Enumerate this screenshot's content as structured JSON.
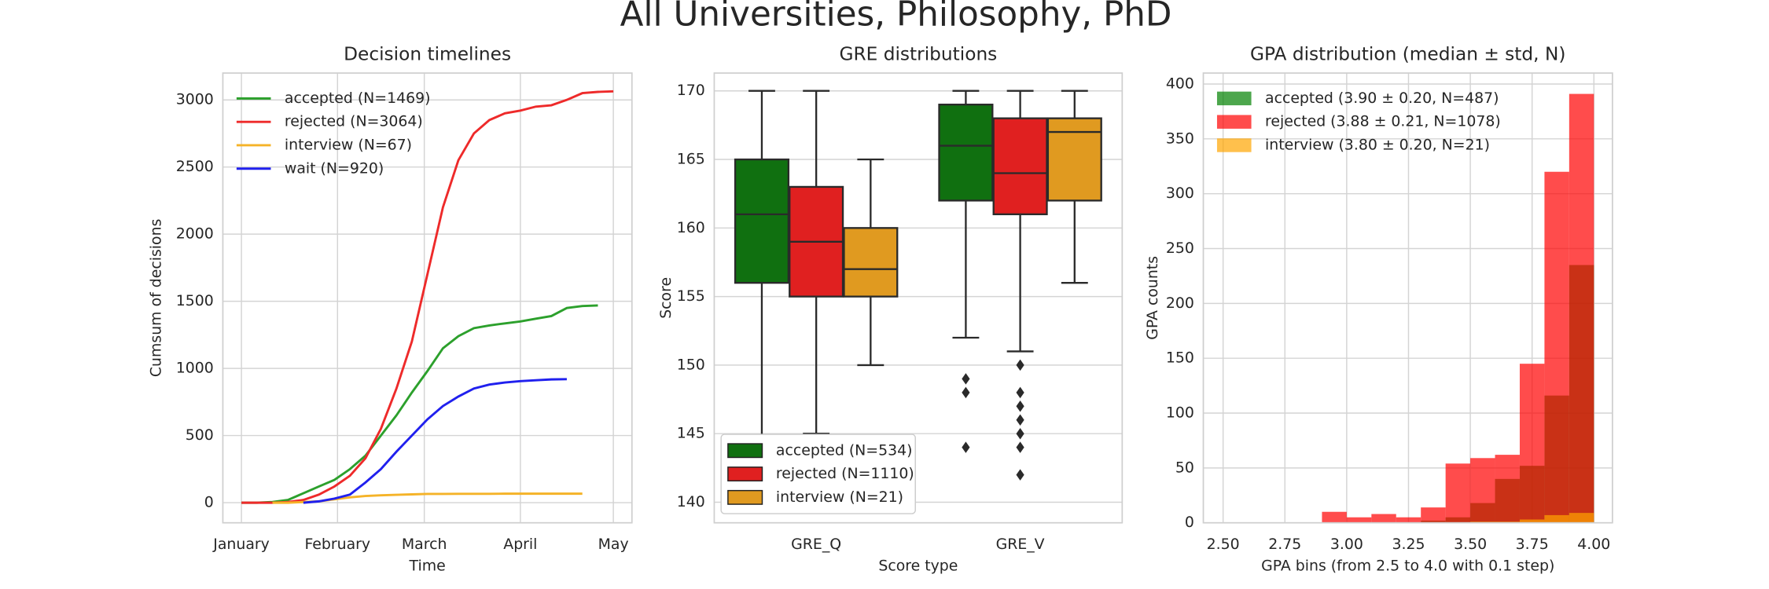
{
  "title": "All Universities, Philosophy, PhD",
  "chart_data": [
    {
      "type": "line",
      "title": "Decision timelines",
      "xlabel": "Time",
      "ylabel": "Cumsum of decisions",
      "x": [
        0,
        5,
        10,
        15,
        20,
        25,
        30,
        35,
        40,
        45,
        50,
        55,
        60,
        65,
        70,
        75,
        80,
        85,
        90,
        95,
        100,
        105,
        110,
        115,
        120
      ],
      "xlim": [
        -6,
        126
      ],
      "xticks": [
        {
          "value": 0,
          "label": "January"
        },
        {
          "value": 31,
          "label": "February"
        },
        {
          "value": 59,
          "label": "March"
        },
        {
          "value": 90,
          "label": "April"
        },
        {
          "value": 120,
          "label": "May"
        }
      ],
      "ylim": [
        -150,
        3200
      ],
      "yticks": [
        0,
        500,
        1000,
        1500,
        2000,
        2500,
        3000
      ],
      "grid": true,
      "legend": "upper left",
      "series": [
        {
          "name": "accepted (N=1469)",
          "color": "#2ca02c",
          "values": [
            0,
            0,
            5,
            20,
            70,
            120,
            170,
            250,
            350,
            500,
            650,
            820,
            980,
            1150,
            1240,
            1300,
            1320,
            1335,
            1350,
            1370,
            1390,
            1450,
            1465,
            1469,
            null
          ]
        },
        {
          "name": "rejected (N=3064)",
          "color": "#ee2a2a",
          "values": [
            0,
            0,
            0,
            5,
            20,
            60,
            120,
            200,
            330,
            550,
            850,
            1200,
            1700,
            2200,
            2550,
            2750,
            2850,
            2900,
            2920,
            2950,
            2960,
            3000,
            3050,
            3060,
            3064
          ]
        },
        {
          "name": "interview (N=67)",
          "color": "#f5b328",
          "values": [
            null,
            null,
            0,
            0,
            5,
            10,
            25,
            40,
            50,
            55,
            58,
            62,
            65,
            65,
            66,
            66,
            66,
            67,
            67,
            67,
            67,
            67,
            67,
            null,
            null
          ]
        },
        {
          "name": "wait (N=920)",
          "color": "#2020ee",
          "values": [
            null,
            null,
            null,
            null,
            0,
            10,
            30,
            60,
            150,
            250,
            380,
            500,
            620,
            720,
            790,
            850,
            880,
            895,
            905,
            912,
            918,
            920,
            null,
            null,
            null
          ]
        }
      ]
    },
    {
      "type": "box",
      "title": "GRE distributions",
      "xlabel": "Score type",
      "ylabel": "Score",
      "categories": [
        "GRE_Q",
        "GRE_V"
      ],
      "ylim": [
        138.5,
        171.3
      ],
      "yticks": [
        140,
        145,
        150,
        155,
        160,
        165,
        170
      ],
      "grid": true,
      "legend": "lower left",
      "series": [
        {
          "name": "accepted (N=534)",
          "color": "#107010",
          "stats": [
            {
              "whislo": 141,
              "q1": 156,
              "med": 161,
              "q3": 165,
              "whishi": 170,
              "fliers": []
            },
            {
              "whislo": 152,
              "q1": 162,
              "med": 166,
              "q3": 169,
              "whishi": 170,
              "fliers": [
                149,
                148,
                144
              ]
            }
          ]
        },
        {
          "name": "rejected (N=1110)",
          "color": "#e02020",
          "stats": [
            {
              "whislo": 145,
              "q1": 155,
              "med": 159,
              "q3": 163,
              "whishi": 170,
              "fliers": []
            },
            {
              "whislo": 151,
              "q1": 161,
              "med": 164,
              "q3": 168,
              "whishi": 170,
              "fliers": [
                150,
                148,
                147,
                146,
                145,
                144,
                142
              ]
            }
          ]
        },
        {
          "name": "interview (N=21)",
          "color": "#e09a20",
          "stats": [
            {
              "whislo": 150,
              "q1": 155,
              "med": 157,
              "q3": 160,
              "whishi": 165,
              "fliers": []
            },
            {
              "whislo": 156,
              "q1": 162,
              "med": 167,
              "q3": 168,
              "whishi": 170,
              "fliers": []
            }
          ]
        }
      ]
    },
    {
      "type": "histogram",
      "title": "GPA distribution (median ± std, N)",
      "xlabel": "GPA bins (from 2.5 to 4.0 with 0.1 step)",
      "ylabel": "GPA counts",
      "bins": [
        2.5,
        2.6,
        2.7,
        2.8,
        2.9,
        3.0,
        3.1,
        3.2,
        3.3,
        3.4,
        3.5,
        3.6,
        3.7,
        3.8,
        3.9,
        4.0
      ],
      "xlim": [
        2.42,
        4.075
      ],
      "xticks": [
        {
          "value": 2.5,
          "label": "2.50"
        },
        {
          "value": 2.75,
          "label": "2.75"
        },
        {
          "value": 3.0,
          "label": "3.00"
        },
        {
          "value": 3.25,
          "label": "3.25"
        },
        {
          "value": 3.5,
          "label": "3.50"
        },
        {
          "value": 3.75,
          "label": "3.75"
        },
        {
          "value": 4.0,
          "label": "4.00"
        }
      ],
      "ylim": [
        0,
        410
      ],
      "yticks": [
        0,
        50,
        100,
        150,
        200,
        250,
        300,
        350,
        400
      ],
      "grid": true,
      "legend": "upper left",
      "opacity": 0.7,
      "series": [
        {
          "name": "accepted (3.90 ± 0.20, N=487)",
          "color": "#008000",
          "values": [
            0,
            0,
            0,
            0,
            0,
            0,
            0,
            0,
            2,
            5,
            18,
            40,
            52,
            116,
            235
          ]
        },
        {
          "name": "rejected (3.88 ± 0.21, N=1078)",
          "color": "#ff0000",
          "values": [
            0,
            0,
            0,
            0,
            10,
            5,
            8,
            5,
            14,
            54,
            59,
            62,
            145,
            320,
            391
          ]
        },
        {
          "name": "interview (3.80 ± 0.20, N=21)",
          "color": "#ffa500",
          "values": [
            0,
            0,
            0,
            0,
            0,
            0,
            0,
            0,
            0,
            0,
            1,
            1,
            3,
            7,
            9
          ]
        }
      ]
    }
  ]
}
